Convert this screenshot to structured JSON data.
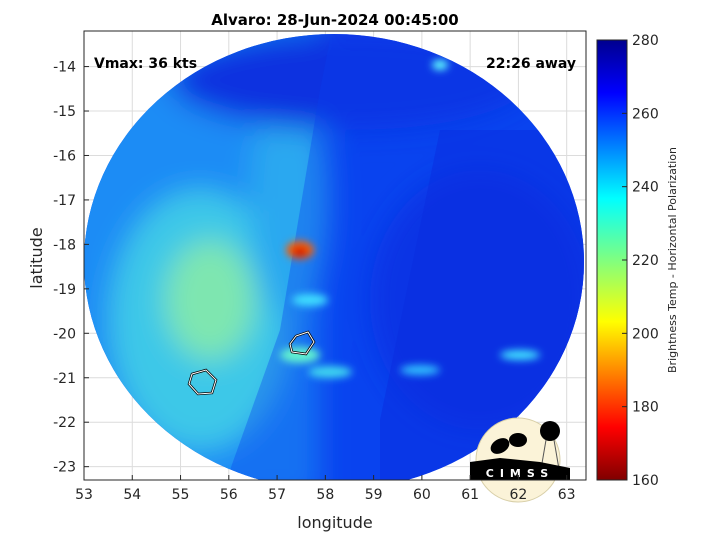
{
  "chart_data": {
    "type": "heatmap",
    "title": "Alvaro: 28-Jun-2024 00:45:00",
    "xlabel": "longitude",
    "ylabel": "latitude",
    "xlim": [
      53,
      63.4
    ],
    "ylim": [
      -23.3,
      -13.2
    ],
    "xticks": [
      53,
      54,
      55,
      56,
      57,
      58,
      59,
      60,
      61,
      62,
      63
    ],
    "yticks": [
      -14,
      -15,
      -16,
      -17,
      -18,
      -19,
      -20,
      -21,
      -22,
      -23
    ],
    "grid": true,
    "colorbar": {
      "label": "Brightness Temp - Horizontal Polarization",
      "range": [
        160,
        280
      ],
      "ticks": [
        160,
        180,
        200,
        220,
        240,
        260,
        280
      ],
      "colormap": "jet"
    },
    "annotations": {
      "vmax": "Vmax: 36 kts",
      "away": "22:26 away"
    },
    "features": [
      {
        "label": "warm core",
        "lon": 57.5,
        "lat": -18.2,
        "value": 180
      },
      {
        "label": "contour",
        "lon": 57.5,
        "lat": -20.3
      },
      {
        "label": "contour",
        "lon": 55.5,
        "lat": -21.1
      }
    ]
  },
  "logo": {
    "text": "CIMSS"
  }
}
